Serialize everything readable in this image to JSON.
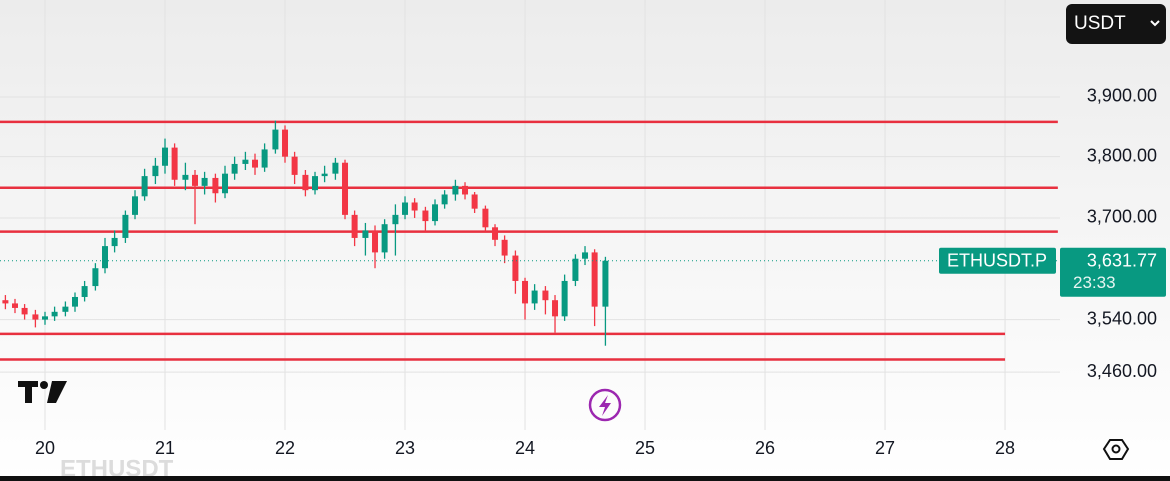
{
  "chart_data": {
    "type": "candlestick",
    "symbol": "ETHUSDT.P",
    "currency": "USDT",
    "watermark": "ETHUSDT",
    "countdown": "23:33",
    "last_price": {
      "value": 3631.77,
      "label": "3,631.77"
    },
    "log_scale": true,
    "grid": true,
    "up_color": "#089981",
    "down_color": "#f23645",
    "line_color": "#e8303f",
    "x": [
      19.67,
      19.75,
      19.83,
      19.92,
      20.0,
      20.08,
      20.17,
      20.25,
      20.33,
      20.42,
      20.5,
      20.58,
      20.67,
      20.75,
      20.83,
      20.92,
      21.0,
      21.08,
      21.17,
      21.25,
      21.33,
      21.42,
      21.5,
      21.58,
      21.67,
      21.75,
      21.83,
      21.92,
      22.0,
      22.08,
      22.17,
      22.25,
      22.33,
      22.42,
      22.5,
      22.58,
      22.67,
      22.75,
      22.83,
      22.92,
      23.0,
      23.08,
      23.17,
      23.25,
      23.33,
      23.42,
      23.5,
      23.58,
      23.67,
      23.75,
      23.83,
      23.92,
      24.0,
      24.08,
      24.17,
      24.25,
      24.33,
      24.42,
      24.5,
      24.58,
      24.67
    ],
    "open": [
      3570,
      3565,
      3558,
      3548,
      3540,
      3545,
      3552,
      3560,
      3575,
      3592,
      3620,
      3655,
      3668,
      3705,
      3735,
      3768,
      3785,
      3815,
      3762,
      3770,
      3752,
      3765,
      3740,
      3772,
      3788,
      3795,
      3782,
      3812,
      3845,
      3800,
      3770,
      3745,
      3768,
      3772,
      3790,
      3705,
      3668,
      3680,
      3645,
      3690,
      3705,
      3725,
      3712,
      3695,
      3722,
      3738,
      3752,
      3738,
      3715,
      3685,
      3665,
      3640,
      3600,
      3565,
      3585,
      3570,
      3545,
      3600,
      3635,
      3645,
      3560
    ],
    "high": [
      3578,
      3572,
      3564,
      3555,
      3552,
      3560,
      3568,
      3582,
      3600,
      3628,
      3668,
      3680,
      3712,
      3745,
      3780,
      3798,
      3830,
      3822,
      3790,
      3778,
      3775,
      3772,
      3785,
      3800,
      3808,
      3805,
      3822,
      3860,
      3852,
      3808,
      3778,
      3775,
      3785,
      3798,
      3795,
      3712,
      3692,
      3688,
      3698,
      3722,
      3735,
      3732,
      3718,
      3730,
      3745,
      3762,
      3758,
      3742,
      3720,
      3690,
      3672,
      3648,
      3605,
      3595,
      3592,
      3578,
      3610,
      3642,
      3655,
      3650,
      3638
    ],
    "low": [
      3556,
      3550,
      3540,
      3528,
      3532,
      3538,
      3545,
      3552,
      3568,
      3585,
      3612,
      3645,
      3660,
      3698,
      3728,
      3755,
      3772,
      3752,
      3745,
      3690,
      3738,
      3725,
      3732,
      3762,
      3778,
      3770,
      3775,
      3805,
      3790,
      3755,
      3735,
      3738,
      3758,
      3762,
      3698,
      3655,
      3640,
      3620,
      3635,
      3640,
      3698,
      3700,
      3678,
      3688,
      3715,
      3728,
      3730,
      3708,
      3678,
      3655,
      3628,
      3580,
      3540,
      3555,
      3548,
      3520,
      3538,
      3592,
      3625,
      3530,
      3500
    ],
    "close": [
      3565,
      3558,
      3548,
      3540,
      3545,
      3552,
      3560,
      3575,
      3592,
      3620,
      3655,
      3668,
      3705,
      3735,
      3768,
      3785,
      3815,
      3762,
      3770,
      3752,
      3765,
      3740,
      3772,
      3788,
      3795,
      3782,
      3812,
      3845,
      3800,
      3770,
      3745,
      3768,
      3772,
      3790,
      3705,
      3668,
      3680,
      3645,
      3690,
      3705,
      3725,
      3712,
      3695,
      3722,
      3738,
      3752,
      3738,
      3715,
      3685,
      3665,
      3640,
      3600,
      3565,
      3585,
      3570,
      3545,
      3600,
      3635,
      3645,
      3560,
      3631.77
    ],
    "hlines": [
      {
        "value": 3858,
        "x_end": 28.44
      },
      {
        "value": 3749,
        "x_end": 28.44
      },
      {
        "value": 3678,
        "x_end": 28.44
      },
      {
        "value": 3518,
        "x_end": 28.0
      },
      {
        "value": 3479,
        "x_end": 28.0
      }
    ],
    "xlim": [
      19.625,
      28.458
    ],
    "xticks": [
      20,
      21,
      22,
      23,
      24,
      25,
      26,
      27,
      28
    ],
    "ylim": [
      3374,
      4068
    ],
    "yticks": [
      {
        "value": 3900,
        "label": "3,900.00"
      },
      {
        "value": 3800,
        "label": "3,800.00"
      },
      {
        "value": 3700,
        "label": "3,700.00"
      },
      {
        "value": 3540,
        "label": "3,540.00"
      },
      {
        "value": 3460,
        "label": "3,460.00"
      }
    ]
  }
}
